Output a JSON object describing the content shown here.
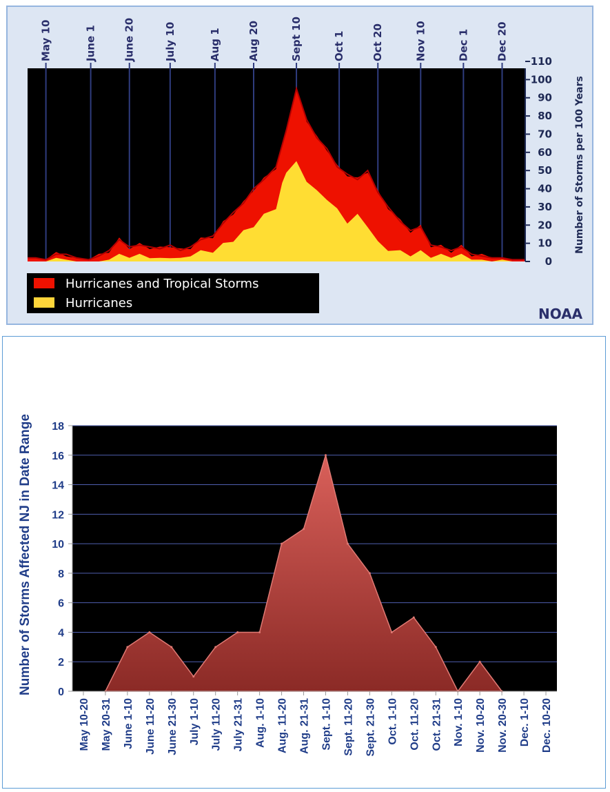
{
  "chart_data": [
    {
      "type": "area",
      "credit": "NOAA",
      "x_ticks": [
        "May 10",
        "June 1",
        "June 20",
        "July 10",
        "Aug 1",
        "Aug 20",
        "Sept 10",
        "Oct 1",
        "Oct 20",
        "Nov 10",
        "Dec 1",
        "Dec 20"
      ],
      "y_ticks": [
        "0",
        "10",
        "20",
        "30",
        "40",
        "50",
        "60",
        "70",
        "80",
        "90",
        "100",
        "110"
      ],
      "ylabel": "Number of Storms per 100 Years",
      "ylim": [
        0,
        110
      ],
      "y_axis_position": "right",
      "x_axis_position": "top",
      "legend_position": "bottom-left",
      "grid": "vertical lines at date ticks",
      "series": [
        {
          "name": "Hurricanes and Tropical Storms",
          "color": "#ee1100",
          "x": [
            "May 1",
            "May 5",
            "May 10",
            "May 15",
            "May 20",
            "May 25",
            "May 31",
            "June 5",
            "June 10",
            "June 15",
            "June 20",
            "June 25",
            "June 30",
            "July 5",
            "July 10",
            "July 15",
            "July 20",
            "July 25",
            "July 31",
            "Aug 5",
            "Aug 10",
            "Aug 15",
            "Aug 20",
            "Aug 25",
            "Aug 31",
            "Sept 3",
            "Sept 5",
            "Sept 10",
            "Sept 15",
            "Sept 20",
            "Sept 25",
            "Sept 30",
            "Oct 5",
            "Oct 10",
            "Oct 15",
            "Oct 20",
            "Oct 25",
            "Oct 31",
            "Nov 5",
            "Nov 10",
            "Nov 15",
            "Nov 20",
            "Nov 25",
            "Nov 30",
            "Dec 5",
            "Dec 10",
            "Dec 15",
            "Dec 20",
            "Dec 25",
            "Dec 31"
          ],
          "values": [
            2,
            2,
            1,
            4,
            4,
            2,
            1,
            3,
            6,
            12,
            8,
            9,
            8,
            7,
            9,
            6,
            8,
            12,
            14,
            21,
            27,
            32,
            40,
            45,
            52,
            64,
            72,
            95,
            78,
            68,
            62,
            52,
            48,
            45,
            50,
            38,
            30,
            22,
            17,
            19,
            9,
            8,
            6,
            8,
            4,
            3,
            2,
            2,
            1,
            1
          ]
        },
        {
          "name": "Hurricanes",
          "color": "#ffdd33",
          "x": [
            "May 1",
            "May 5",
            "May 10",
            "May 15",
            "May 20",
            "May 25",
            "May 31",
            "June 5",
            "June 10",
            "June 15",
            "June 20",
            "June 25",
            "June 30",
            "July 5",
            "July 10",
            "July 15",
            "July 20",
            "July 25",
            "July 31",
            "Aug 5",
            "Aug 10",
            "Aug 15",
            "Aug 20",
            "Aug 25",
            "Aug 31",
            "Sept 3",
            "Sept 5",
            "Sept 10",
            "Sept 15",
            "Sept 20",
            "Sept 25",
            "Sept 30",
            "Oct 5",
            "Oct 10",
            "Oct 15",
            "Oct 20",
            "Oct 25",
            "Oct 31",
            "Nov 5",
            "Nov 10",
            "Nov 15",
            "Nov 20",
            "Nov 25",
            "Nov 30",
            "Dec 5",
            "Dec 10",
            "Dec 15",
            "Dec 20",
            "Dec 25",
            "Dec 31"
          ],
          "values": [
            0,
            0,
            0,
            2,
            1,
            0,
            0,
            0,
            1,
            3,
            2,
            3,
            3,
            2,
            3,
            2,
            4,
            5,
            6,
            9,
            12,
            16,
            20,
            25,
            30,
            42,
            50,
            54,
            45,
            38,
            35,
            28,
            22,
            25,
            20,
            10,
            7,
            5,
            4,
            5,
            2,
            3,
            2,
            3,
            1,
            1,
            0,
            1,
            0,
            0
          ]
        }
      ]
    },
    {
      "type": "area",
      "ylabel": "Number of Storms Affected NJ in Date Range",
      "ylim": [
        0,
        18
      ],
      "y_ticks": [
        "0",
        "2",
        "4",
        "6",
        "8",
        "10",
        "12",
        "14",
        "16",
        "18"
      ],
      "grid": "horizontal",
      "categories": [
        "May 10-20",
        "May 20-31",
        "June 1-10",
        "June 11-20",
        "June 21-30",
        "July 1-10",
        "July 11-20",
        "July 21-31",
        "Aug. 1-10",
        "Aug. 11-20",
        "Aug. 21-31",
        "Sept. 1-10",
        "Sept. 11-20",
        "Sept. 21-30",
        "Oct. 1-10",
        "Oct. 11-20",
        "Oct. 21-31",
        "Nov. 1-10",
        "Nov. 10-20",
        "Nov. 20-30",
        "Dec. 1-10",
        "Dec. 10-20"
      ],
      "series": [
        {
          "color": "#c0504d",
          "values": [
            null,
            0,
            3,
            4,
            3,
            1,
            3,
            4,
            4,
            10,
            11,
            16,
            10,
            8,
            4,
            5,
            3,
            0,
            2,
            0,
            null,
            null
          ]
        }
      ]
    }
  ]
}
